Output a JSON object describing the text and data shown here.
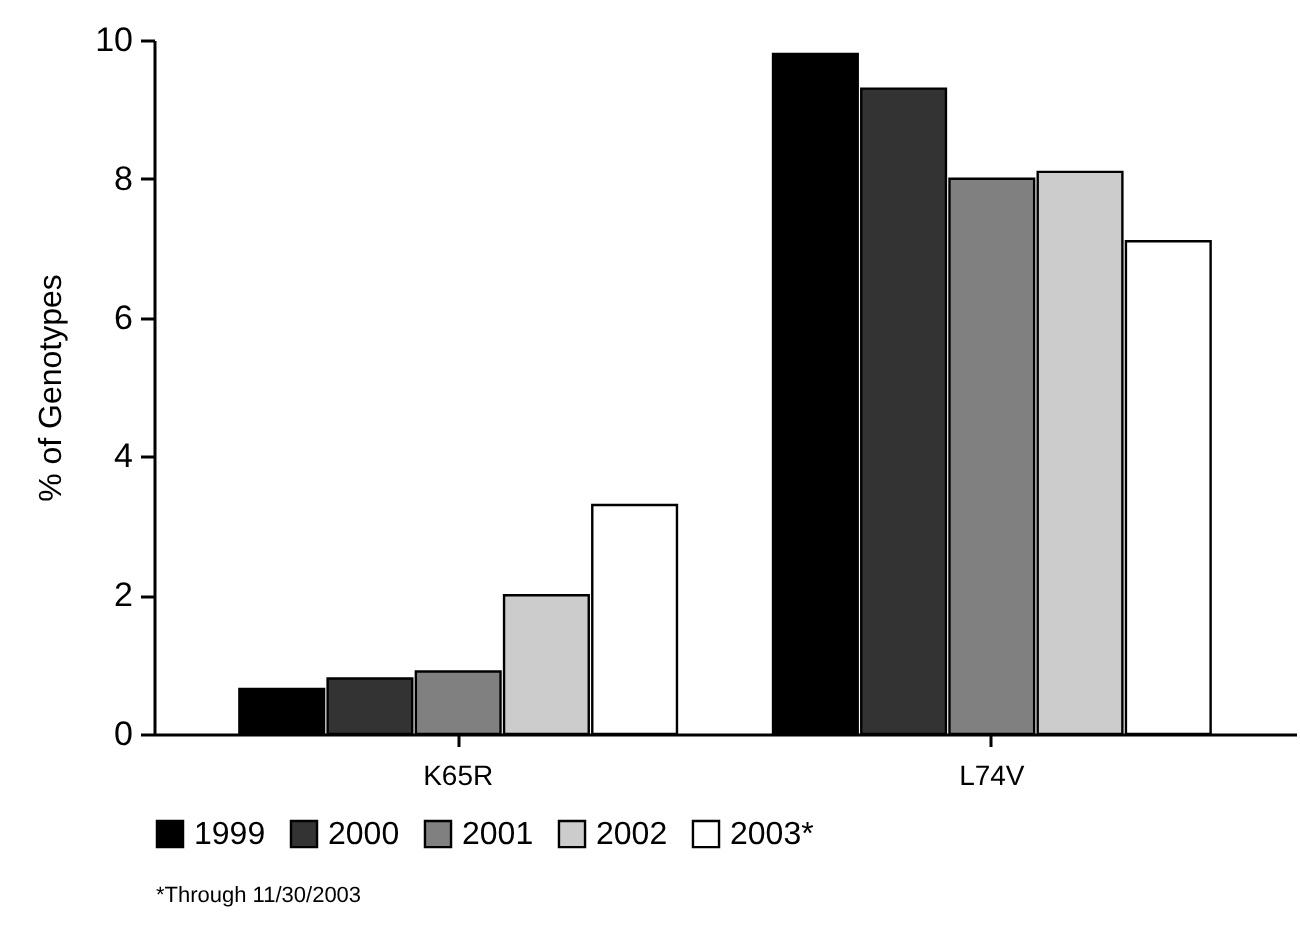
{
  "chart_data": {
    "type": "bar",
    "ylabel": "% of Genotypes",
    "categories": [
      "K65R",
      "L74V"
    ],
    "series": [
      {
        "name": "1999",
        "color": "#000000",
        "values": [
          0.65,
          9.8
        ]
      },
      {
        "name": "2000",
        "color": "#333333",
        "values": [
          0.8,
          9.3
        ]
      },
      {
        "name": "2001",
        "color": "#808080",
        "values": [
          0.9,
          8.0
        ]
      },
      {
        "name": "2002",
        "color": "#cccccc",
        "values": [
          2.0,
          8.1
        ]
      },
      {
        "name": "2003*",
        "color": "#ffffff",
        "values": [
          3.3,
          7.1
        ]
      }
    ],
    "ylim": [
      0,
      10
    ],
    "yticks": [
      0,
      2,
      4,
      6,
      8,
      10
    ],
    "grid": false,
    "legend": "bottom",
    "annotations": [
      "*Through 11/30/2003"
    ]
  }
}
